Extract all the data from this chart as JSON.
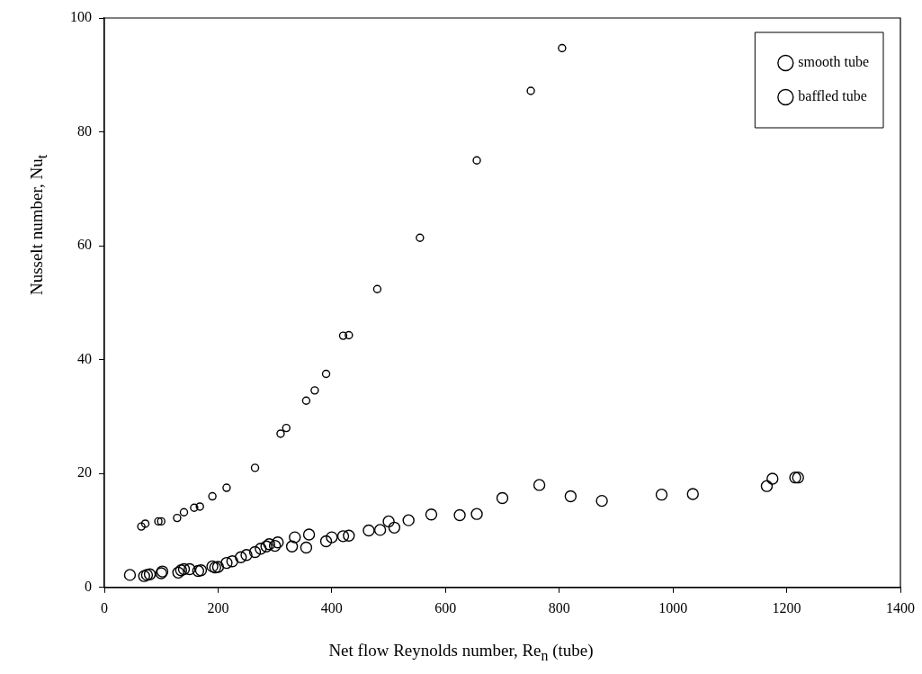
{
  "chart_data": {
    "type": "scatter",
    "xlabel": "Net flow Reynolds number, Re$_{n}$ (tube)",
    "ylabel": "Nusselt number, Nu$_{t}$",
    "xlim": [
      0,
      1400
    ],
    "xticks": [
      0,
      200,
      400,
      600,
      800,
      1000,
      1200,
      1400
    ],
    "ylim": [
      0,
      100
    ],
    "yticks": [
      0,
      20,
      40,
      60,
      80,
      100
    ],
    "legend": "top right",
    "marker": "circle",
    "grid": false,
    "series": [
      {
        "name": "smooth tube",
        "color": "#000000",
        "x": [
          45,
          70,
          75,
          80,
          100,
          102,
          130,
          135,
          140,
          150,
          165,
          170,
          190,
          195,
          200,
          215,
          225,
          240,
          250,
          265,
          275,
          285,
          290,
          300,
          305,
          330,
          335,
          355,
          360,
          390,
          400,
          420,
          430,
          465,
          485,
          500,
          510,
          535,
          575,
          625,
          655,
          700,
          765,
          820,
          875,
          980,
          1035,
          1165,
          1175,
          1215,
          1220
        ],
        "values": [
          2.2,
          2.0,
          2.2,
          2.3,
          2.5,
          2.8,
          2.6,
          3.0,
          3.2,
          3.2,
          2.9,
          3.0,
          3.7,
          3.5,
          3.6,
          4.3,
          4.6,
          5.3,
          5.7,
          6.2,
          6.8,
          7.2,
          7.6,
          7.3,
          7.9,
          7.2,
          8.8,
          7.0,
          9.3,
          8.1,
          8.8,
          9.0,
          9.1,
          10.0,
          10.1,
          11.6,
          10.5,
          11.8,
          12.8,
          12.7,
          12.9,
          15.7,
          18.0,
          16.0,
          15.2,
          16.3,
          16.4,
          17.8,
          19.1,
          19.3,
          19.3
        ]
      },
      {
        "name": "baffled tube",
        "color": "#000000",
        "x": [
          65,
          72,
          95,
          100,
          128,
          140,
          158,
          168,
          190,
          215,
          265,
          310,
          320,
          355,
          370,
          390,
          420,
          430,
          480,
          555,
          655,
          750,
          805
        ],
        "values": [
          10.7,
          11.2,
          11.6,
          11.6,
          12.2,
          13.2,
          14.0,
          14.2,
          16.0,
          17.5,
          21.0,
          27.0,
          28.0,
          32.8,
          34.6,
          37.5,
          44.2,
          44.3,
          52.4,
          61.4,
          75.0,
          87.2,
          94.7
        ]
      }
    ]
  }
}
